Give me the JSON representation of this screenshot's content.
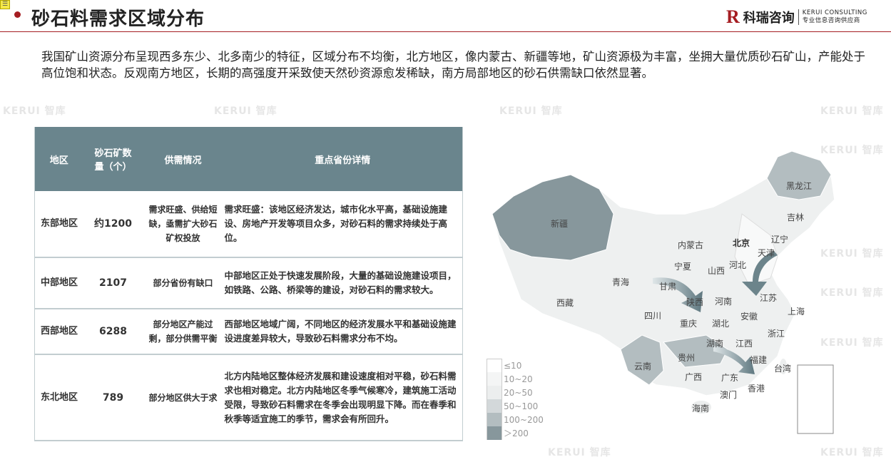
{
  "header": {
    "title": "砂石料需求区域分布",
    "note_icon": "note-icon"
  },
  "logo": {
    "mark": "R",
    "cn": "科瑞咨询",
    "en": "KERUI CONSULTING",
    "tagline": "专业信息咨询供应商"
  },
  "intro": "我国矿山资源分布呈现西多东少、北多南少的特征，区域分布不均衡，北方地区，像内蒙古、新疆等地，矿山资源极为丰富，坐拥大量优质砂石矿山，产能处于高位饱和状态。反观南方地区，长期的高强度开采致使天然砂资源愈发稀缺，南方局部地区的砂石供需缺口依然显著。",
  "watermark": "KERUI 智库",
  "table": {
    "headers": [
      "地区",
      "砂石矿数量（个）",
      "供需情况",
      "重点省份详情"
    ],
    "header_color": "#6a858d",
    "rows": [
      {
        "region": "东部地区",
        "count": "约1200",
        "supply": "需求旺盛、供给短缺，亟需扩大砂石矿权投放",
        "detail": "需求旺盛：该地区经济发达，城市化水平高，基础设施建设、房地产开发等项目众多，对砂石料的需求持续处于高位。"
      },
      {
        "region": "中部地区",
        "count": "2107",
        "supply": "部分省份有缺口",
        "detail": "中部地区正处于快速发展阶段，大量的基础设施建设项目，如铁路、公路、桥梁等的建设，对砂石料的需求较大。"
      },
      {
        "region": "西部地区",
        "count": "6288",
        "supply": "部分地区产能过剩，部分供需平衡",
        "detail": "西部地区地域广阔，不同地区的经济发展水平和基础设施建设进度差异较大，导致砂石料需求分布不均。"
      },
      {
        "region": "东北地区",
        "count": "789",
        "supply": "部分地区供大于求",
        "detail": "北方内陆地区整体经济发展和建设速度相对平稳，砂石料需求也相对稳定。北方内陆地区冬季气候寒冷，建筑施工活动受限，导致砂石料需求在冬季会出现明显下降。而在春季和秋季等适宜施工的季节，需求会有所回升。"
      }
    ]
  },
  "map": {
    "provinces": [
      "黑龙江",
      "吉林",
      "辽宁",
      "北京",
      "天津",
      "内蒙古",
      "新疆",
      "宁夏",
      "山西",
      "河北",
      "青海",
      "甘肃",
      "陕西",
      "河南",
      "江苏",
      "上海",
      "西藏",
      "四川",
      "湖北",
      "安徽",
      "重庆",
      "浙江",
      "湖南",
      "江西",
      "贵州",
      "福建",
      "台湾",
      "云南",
      "广西",
      "广东",
      "澳门",
      "香港",
      "海南"
    ],
    "legend": [
      {
        "label": "≤10",
        "color": "#ffffff"
      },
      {
        "label": "10~20",
        "color": "#f4f5f5"
      },
      {
        "label": "20~50",
        "color": "#eceeee"
      },
      {
        "label": "50~100",
        "color": "#d3d8da"
      },
      {
        "label": "100~200",
        "color": "#b3bdc0"
      },
      {
        "label": "＞200",
        "color": "#87979c"
      }
    ]
  }
}
